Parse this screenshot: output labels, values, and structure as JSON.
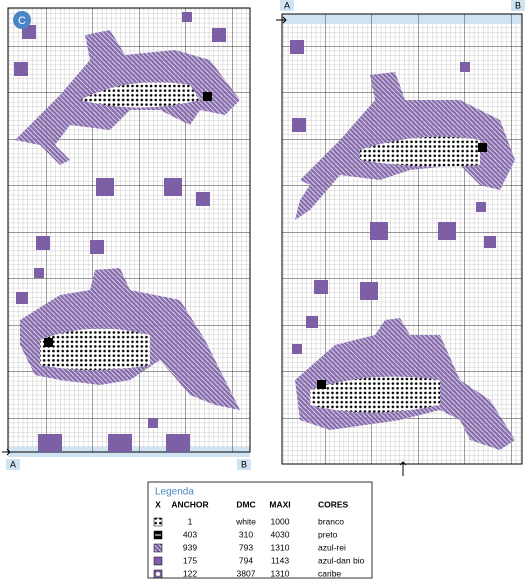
{
  "labels": {
    "badge": "C",
    "left_a": "A",
    "left_b": "B",
    "right_a": "A",
    "right_b": "B"
  },
  "legend": {
    "title": "Legenda",
    "headers": [
      "X",
      "ANCHOR",
      "DMC",
      "MAXI",
      "CORES"
    ],
    "rows": [
      [
        "1",
        "white",
        "1000",
        "branco"
      ],
      [
        "403",
        "310",
        "4030",
        "preto"
      ],
      [
        "939",
        "793",
        "1310",
        "azul-rei"
      ],
      [
        "175",
        "794",
        "1143",
        "azul-dan bio"
      ],
      [
        "122",
        "3807",
        "1310",
        "caribe"
      ]
    ]
  }
}
